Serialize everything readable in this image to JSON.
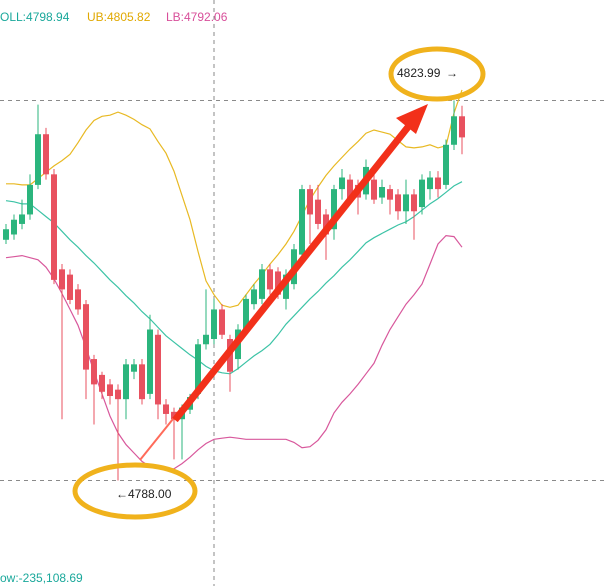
{
  "chart_data": {
    "type": "candlestick",
    "legend": [
      {
        "label": "OLL:4798.94",
        "color": "#1aa89b"
      },
      {
        "label": "UB:4805.82",
        "color": "#e0a800"
      },
      {
        "label": "LB:4792.06",
        "color": "#d84f9a"
      }
    ],
    "up_color": "#2bb57d",
    "down_color": "#e8515f",
    "ylim": [
      4778.0,
      4830.2
    ],
    "open": [
      4810.8,
      4811.3,
      4812.3,
      4813.2,
      4816.0,
      4820.8,
      4817.0,
      4808.0,
      4807.5,
      4806.1,
      4804.7,
      4799.5,
      4798.0,
      4797.1,
      4796.6,
      4795.7,
      4798.3,
      4799.0,
      4796.2,
      4801.8,
      4795.2,
      4794.5,
      4793.8,
      4794.7,
      4796.2,
      4800.9,
      4801.4,
      4804.2,
      4801.4,
      4799.5,
      4802.3,
      4804.7,
      4805.2,
      4808.0,
      4807.8,
      4805.2,
      4806.6,
      4809.4,
      4815.6,
      4814.6,
      4813.2,
      4811.8,
      4815.6,
      4816.5,
      4816.0,
      4815.1,
      4816.5,
      4814.8,
      4815.6,
      4815.1,
      4813.5,
      4815.1,
      4813.9,
      4815.6,
      4816.7,
      4816.0,
      4819.8,
      4822.5
    ],
    "high": [
      4812.3,
      4813.2,
      4814.6,
      4817.0,
      4823.6,
      4821.4,
      4817.5,
      4808.5,
      4808.0,
      4806.6,
      4805.1,
      4799.9,
      4798.3,
      4797.6,
      4797.1,
      4799.5,
      4799.5,
      4799.5,
      4803.7,
      4802.3,
      4795.7,
      4794.9,
      4795.2,
      4796.2,
      4801.4,
      4806.1,
      4805.2,
      4804.7,
      4801.8,
      4802.8,
      4805.6,
      4806.6,
      4808.5,
      4808.5,
      4808.2,
      4808.0,
      4810.4,
      4816.0,
      4816.0,
      4816.0,
      4813.7,
      4816.0,
      4817.5,
      4817.0,
      4816.5,
      4818.4,
      4817.0,
      4816.5,
      4816.0,
      4815.6,
      4816.5,
      4815.6,
      4817.0,
      4817.3,
      4817.3,
      4820.3,
      4823.99,
      4823.5
    ],
    "low": [
      4810.4,
      4810.8,
      4811.8,
      4812.7,
      4815.6,
      4816.5,
      4806.6,
      4793.8,
      4804.7,
      4803.7,
      4795.7,
      4793.3,
      4795.7,
      4795.2,
      4788.0,
      4793.8,
      4797.6,
      4795.2,
      4795.7,
      4793.8,
      4793.3,
      4790.0,
      4790.0,
      4794.3,
      4795.7,
      4800.4,
      4800.9,
      4801.4,
      4796.4,
      4798.5,
      4801.8,
      4804.2,
      4804.7,
      4805.6,
      4805.2,
      4804.2,
      4806.1,
      4808.9,
      4810.4,
      4811.8,
      4808.9,
      4810.8,
      4814.6,
      4814.2,
      4813.2,
      4814.6,
      4814.2,
      4814.2,
      4813.2,
      4812.7,
      4812.3,
      4810.8,
      4813.2,
      4814.6,
      4814.8,
      4815.6,
      4819.3,
      4818.9
    ],
    "close": [
      4811.8,
      4812.7,
      4813.2,
      4816.0,
      4820.8,
      4817.0,
      4807.0,
      4806.1,
      4805.1,
      4804.2,
      4798.5,
      4797.1,
      4796.4,
      4796.0,
      4795.7,
      4799.0,
      4799.0,
      4795.7,
      4802.3,
      4795.2,
      4794.3,
      4793.8,
      4794.9,
      4795.9,
      4800.9,
      4801.8,
      4804.2,
      4801.8,
      4798.3,
      4802.3,
      4805.2,
      4806.1,
      4808.0,
      4806.1,
      4805.6,
      4807.5,
      4809.9,
      4815.6,
      4813.2,
      4812.3,
      4811.3,
      4815.6,
      4816.7,
      4814.6,
      4814.8,
      4817.7,
      4814.6,
      4815.8,
      4814.6,
      4813.5,
      4815.1,
      4813.5,
      4816.5,
      4816.7,
      4815.6,
      4819.8,
      4822.5,
      4820.5
    ],
    "bands": [
      {
        "color": "#e8b923",
        "values": [
          4816.1,
          4816.1,
          4816.0,
          4816.0,
          4816.6,
          4817.2,
          4817.8,
          4818.3,
          4818.9,
          4820.0,
          4821.2,
          4822.1,
          4822.5,
          4822.6,
          4822.9,
          4822.6,
          4822.2,
          4821.7,
          4821.3,
          4820.1,
          4819.0,
          4817.3,
          4815.0,
          4812.7,
          4809.7,
          4806.9,
          4805.6,
          4804.6,
          4804.4,
          4804.6,
          4805.6,
          4806.6,
          4807.5,
          4808.5,
          4809.4,
          4810.4,
          4811.6,
          4813.1,
          4814.6,
          4815.8,
          4816.9,
          4817.8,
          4818.6,
          4819.4,
          4820.1,
          4820.9,
          4821.2,
          4821.0,
          4820.8,
          4820.2,
          4819.6,
          4819.5,
          4819.6,
          4819.8,
          4819.5,
          4819.7,
          4822.8,
          4825.0
        ]
      },
      {
        "color": "#3cc3a6",
        "values": [
          4814.5,
          4814.4,
          4814.2,
          4814.2,
          4813.6,
          4813.0,
          4812.4,
          4811.6,
          4810.8,
          4810.1,
          4809.3,
          4808.6,
          4807.8,
          4807.0,
          4806.3,
          4805.5,
          4804.8,
          4804.0,
          4803.3,
          4802.5,
          4801.7,
          4801.1,
          4800.5,
          4799.9,
          4799.4,
          4798.8,
          4798.4,
          4798.2,
          4798.1,
          4798.6,
          4799.2,
          4799.8,
          4800.3,
          4800.9,
          4801.8,
          4802.8,
          4803.6,
          4804.4,
          4805.2,
          4805.9,
          4806.7,
          4807.4,
          4808.2,
          4808.9,
          4809.7,
          4810.5,
          4811.0,
          4811.4,
          4811.8,
          4812.2,
          4812.5,
          4813.0,
          4813.6,
          4814.2,
          4814.7,
          4815.3,
          4815.9,
          4816.3
        ]
      },
      {
        "color": "#d8589c",
        "values": [
          4809.1,
          4809.2,
          4809.3,
          4809.1,
          4808.9,
          4808.2,
          4807.1,
          4805.7,
          4804.2,
          4802.7,
          4800.6,
          4798.3,
          4796.2,
          4794.1,
          4792.5,
          4791.4,
          4790.6,
          4789.8,
          4789.3,
          4789.2,
          4789.1,
          4789.1,
          4789.6,
          4790.2,
          4790.9,
          4791.5,
          4791.9,
          4792.0,
          4792.1,
          4792.0,
          4791.9,
          4791.9,
          4791.9,
          4791.9,
          4791.9,
          4791.9,
          4791.6,
          4791.1,
          4791.2,
          4791.8,
          4792.8,
          4794.4,
          4795.4,
          4796.2,
          4797.1,
          4798.1,
          4799.1,
          4800.8,
          4802.3,
          4803.5,
          4804.7,
          4805.6,
          4806.6,
          4808.5,
          4810.4,
          4811.2,
          4811.1,
          4810.1
        ]
      }
    ],
    "annotations": [
      {
        "value": 4823.99,
        "label": "4823.99"
      },
      {
        "value": 4788.0,
        "label": "4788.00"
      }
    ],
    "footer_text": "ow:-235,108.69"
  }
}
